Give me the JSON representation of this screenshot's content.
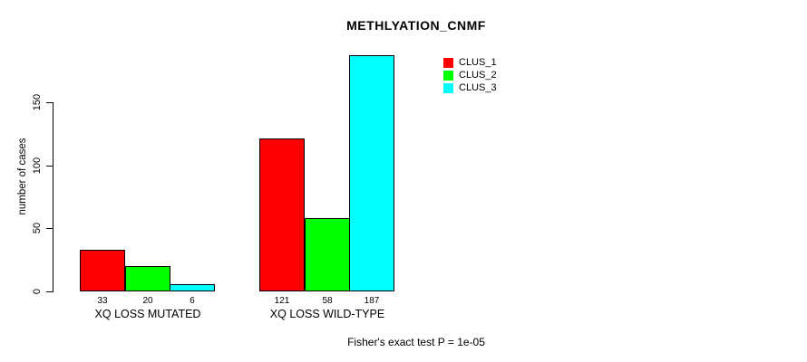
{
  "chart_data": {
    "type": "bar",
    "title": "METHLYATION_CNMF",
    "ylabel": "number of cases",
    "xlabel": "",
    "ylim": [
      0,
      150
    ],
    "yticks": [
      0,
      50,
      100,
      150
    ],
    "categories": [
      "XQ LOSS MUTATED",
      "XQ LOSS WILD-TYPE"
    ],
    "series": [
      {
        "name": "CLUS_1",
        "color": "#ff0000",
        "values": [
          33,
          121
        ]
      },
      {
        "name": "CLUS_2",
        "color": "#00ff00",
        "values": [
          20,
          58
        ]
      },
      {
        "name": "CLUS_3",
        "color": "#00ffff",
        "values": [
          6,
          187
        ]
      }
    ],
    "bar_value_labels_shown": true,
    "legend_position": "top-right",
    "grid": false,
    "annotation": "Fisher's exact test P = 1e-05"
  },
  "colors": {
    "axis": "#000000",
    "text": "#000000",
    "background": "#ffffff"
  }
}
